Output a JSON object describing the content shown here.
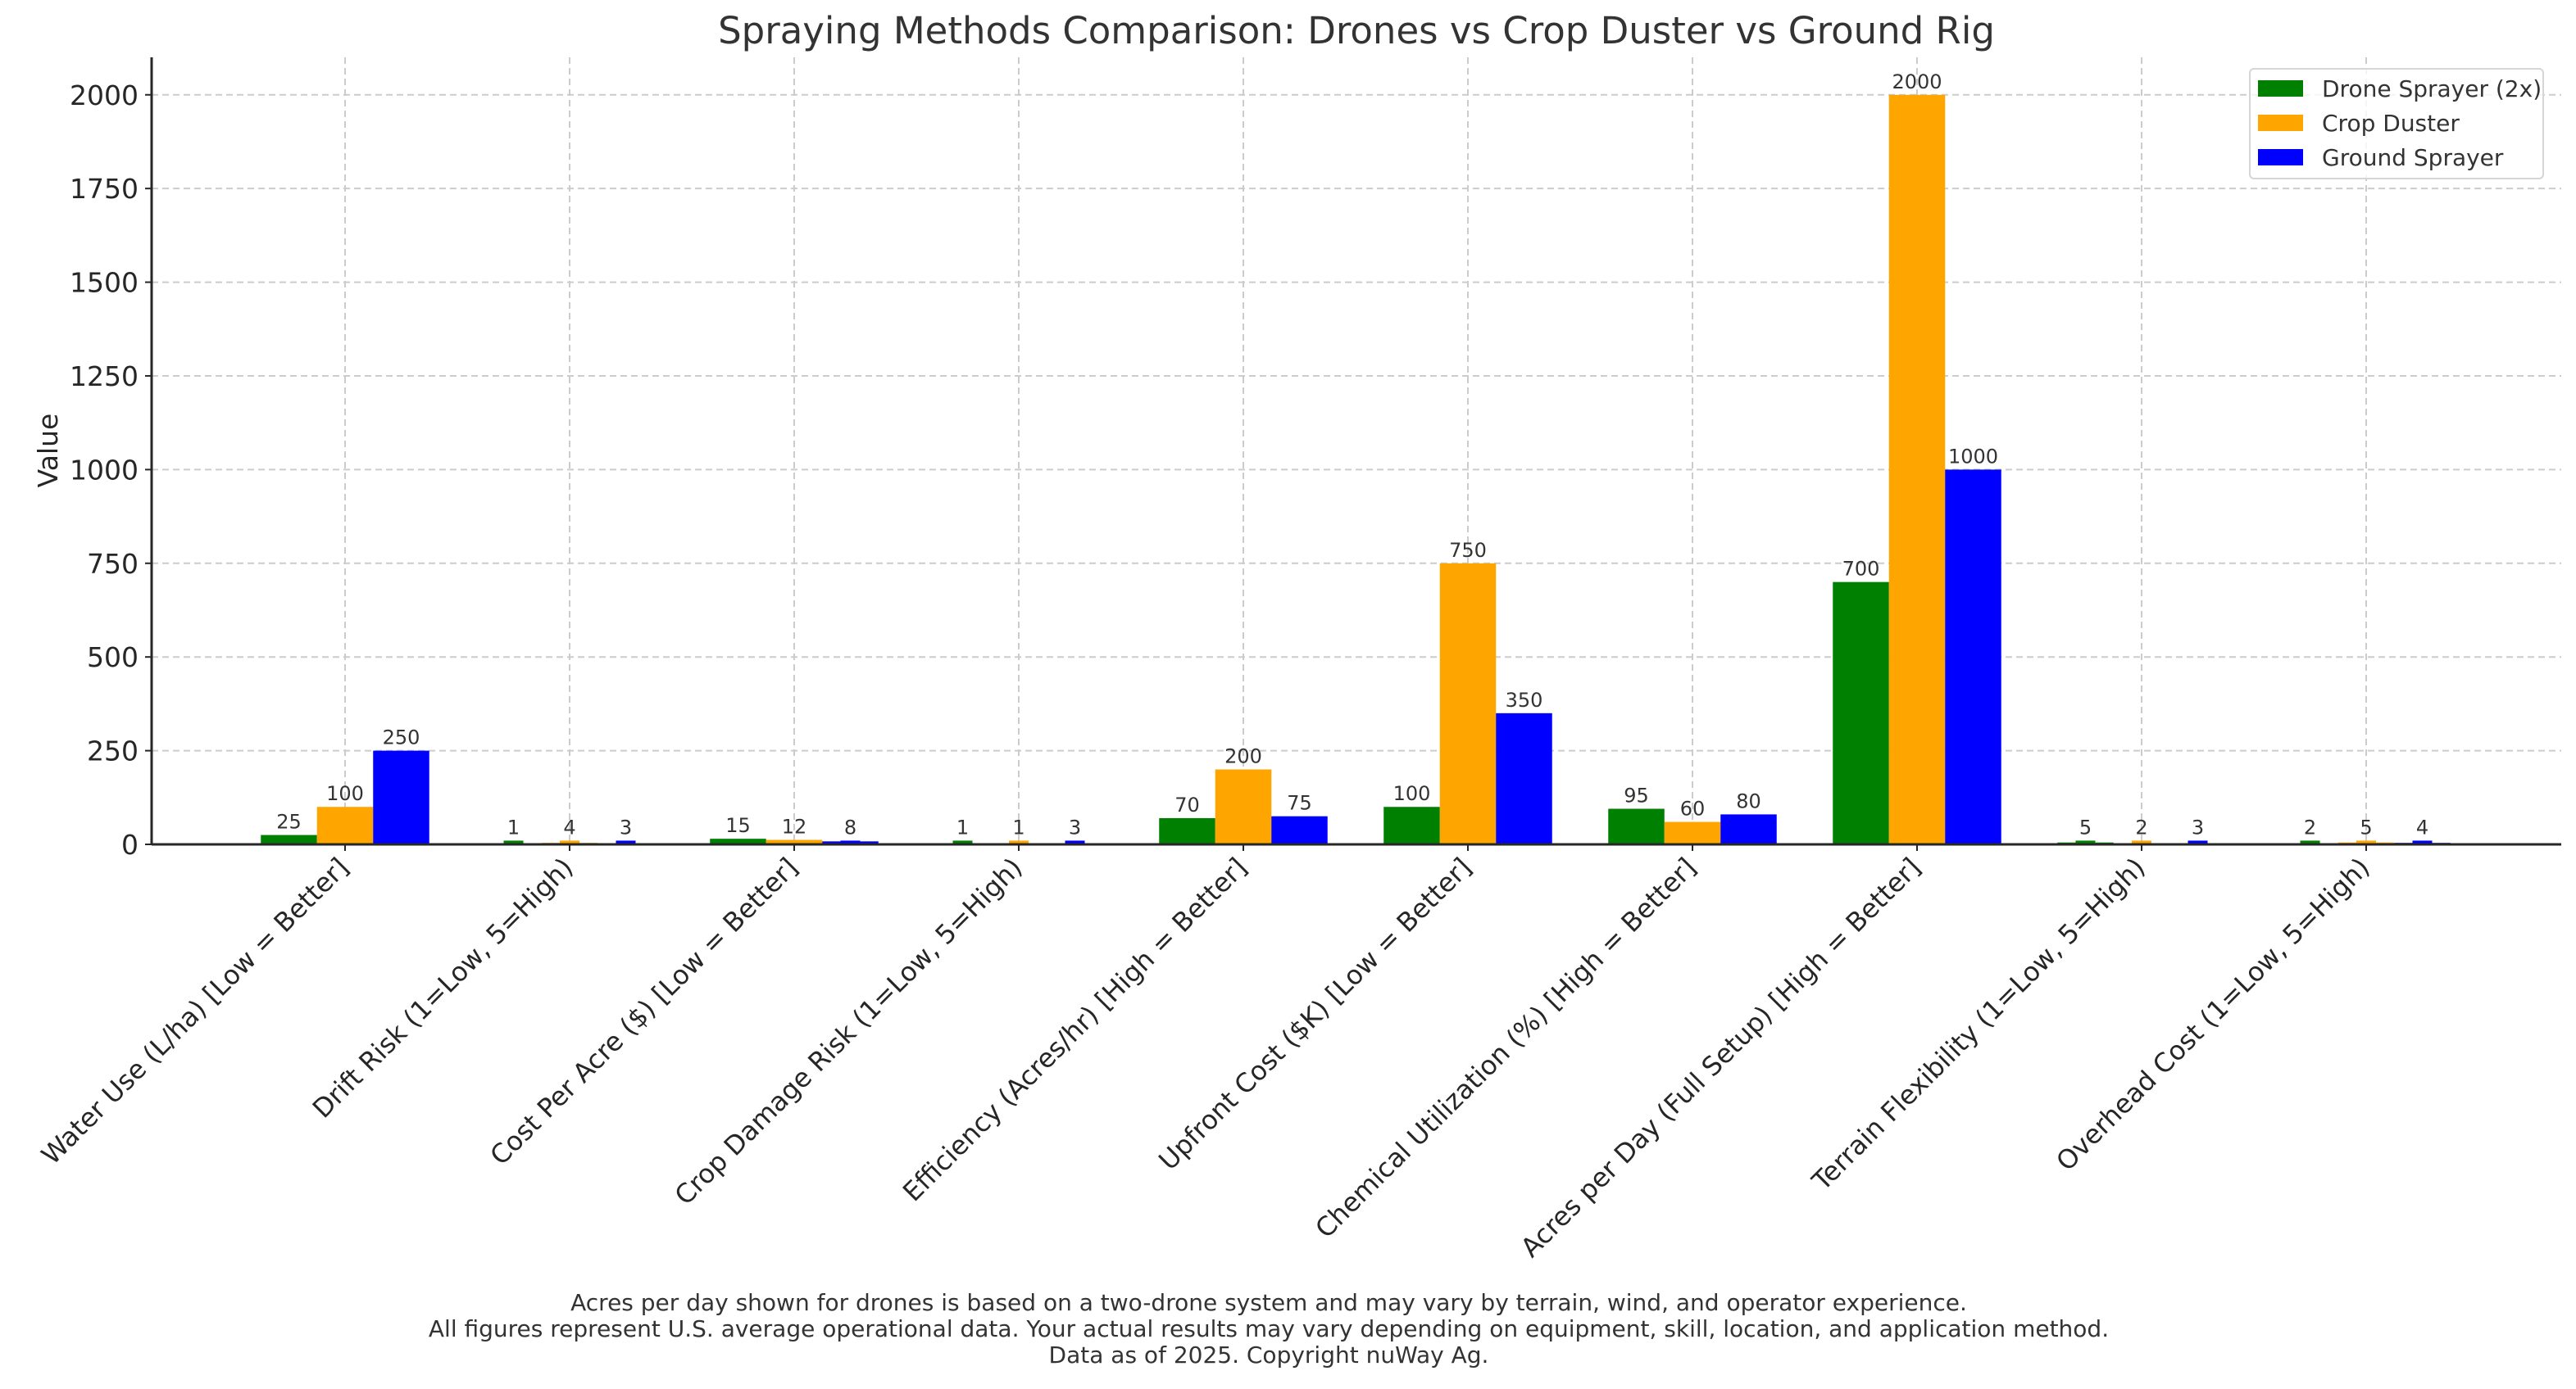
{
  "chart_data": {
    "type": "bar",
    "title": "Spraying Methods Comparison: Drones vs Crop Duster vs Ground Rig",
    "xlabel": "",
    "ylabel": "Value",
    "ylim": [
      0,
      2100
    ],
    "yticks": [
      0,
      250,
      500,
      750,
      1000,
      1250,
      1500,
      1750,
      2000
    ],
    "grid": true,
    "legend_position": "top-right",
    "categories": [
      "Water Use (L/ha) [Low = Better]",
      "Drift Risk (1=Low, 5=High)",
      "Cost Per Acre ($) [Low = Better]",
      "Crop Damage Risk (1=Low, 5=High)",
      "Efficiency (Acres/hr) [High = Better]",
      "Upfront Cost ($K) [Low = Better]",
      "Chemical Utilization (%) [High = Better]",
      "Acres per Day (Full Setup) [High = Better]",
      "Terrain Flexibility (1=Low, 5=High)",
      "Overhead Cost (1=Low, 5=High)"
    ],
    "series": [
      {
        "name": "Drone Sprayer (2x)",
        "color": "#008000",
        "values": [
          25,
          1,
          15,
          1,
          70,
          100,
          95,
          700,
          5,
          2
        ]
      },
      {
        "name": "Crop Duster",
        "color": "#ffa500",
        "values": [
          100,
          4,
          12,
          1,
          200,
          750,
          60,
          2000,
          2,
          5
        ]
      },
      {
        "name": "Ground Sprayer",
        "color": "#0000ff",
        "values": [
          250,
          3,
          8,
          3,
          75,
          350,
          80,
          1000,
          3,
          4
        ]
      }
    ],
    "overlay_min_values": 10,
    "footnotes": [
      "Acres per day shown for drones is based on a two-drone system and may vary by terrain, wind, and operator experience.",
      "All figures represent U.S. average operational data. Your actual results may vary depending on equipment, skill, location, and application method.",
      "Data as of 2025. Copyright nuWay Ag."
    ]
  }
}
